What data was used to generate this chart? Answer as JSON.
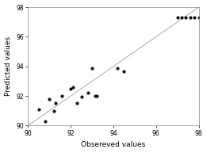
{
  "title": "",
  "xlabel": "Obsereved values",
  "ylabel": "Predicted values",
  "xlim": [
    90,
    98
  ],
  "ylim": [
    90,
    98
  ],
  "xticks": [
    90,
    92,
    94,
    96,
    98
  ],
  "yticks": [
    90,
    92,
    94,
    96,
    98
  ],
  "scatter_x": [
    90.5,
    90.8,
    91.0,
    91.2,
    91.3,
    91.6,
    92.0,
    92.1,
    92.3,
    92.5,
    92.8,
    93.0,
    93.15,
    93.2,
    94.2,
    94.5,
    97.0,
    97.2,
    97.4,
    97.6,
    97.8,
    98.0
  ],
  "scatter_y": [
    91.1,
    90.3,
    91.8,
    91.0,
    91.5,
    92.0,
    92.5,
    92.6,
    91.5,
    91.95,
    92.2,
    93.85,
    92.0,
    92.0,
    93.85,
    93.65,
    97.3,
    97.3,
    97.3,
    97.3,
    97.3,
    97.3
  ],
  "line_color": "#aaaaaa",
  "marker_color": "#111111",
  "marker_size": 9,
  "bg_color": "#ffffff",
  "font_size_label": 6.5,
  "font_size_tick": 5.5,
  "linewidth": 0.7
}
